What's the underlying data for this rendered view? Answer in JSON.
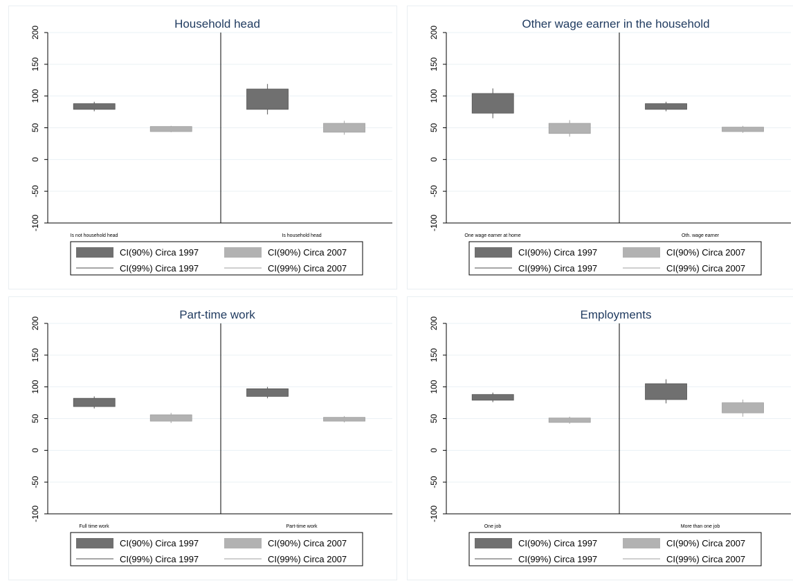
{
  "legend": {
    "ci90_1997": "CI(90%) Circa 1997",
    "ci90_2007": "CI(90%) Circa 2007",
    "ci99_1997": "CI(99%) Circa 1997",
    "ci99_2007": "CI(99%) Circa 2007"
  },
  "colors": {
    "c1997": "#707070",
    "c2007": "#b2b2b2",
    "grid": "#eaf0f4",
    "title": "#1f3a5f"
  },
  "chart_data": [
    {
      "type": "box",
      "title": "Household head",
      "ylim": [
        -100,
        200
      ],
      "yticks": [
        "-100",
        "-50",
        "0",
        "50",
        "100",
        "150",
        "200"
      ],
      "categories": [
        "Is not household head",
        "Is household head"
      ],
      "series": [
        {
          "name": "Circa 1997",
          "ci90": [
            [
              79,
              88
            ],
            [
              79,
              111
            ]
          ],
          "ci99": [
            [
              76,
              91
            ],
            [
              71,
              119
            ]
          ]
        },
        {
          "name": "Circa 2007",
          "ci90": [
            [
              44,
              52
            ],
            [
              43,
              57
            ]
          ],
          "ci99": [
            [
              43,
              53
            ],
            [
              39,
              61
            ]
          ]
        }
      ]
    },
    {
      "type": "box",
      "title": "Other wage earner in the household",
      "ylim": [
        -100,
        200
      ],
      "yticks": [
        "-100",
        "-50",
        "0",
        "50",
        "100",
        "150",
        "200"
      ],
      "categories": [
        "One wage earner at home",
        "Oth. wage earner"
      ],
      "series": [
        {
          "name": "Circa 1997",
          "ci90": [
            [
              73,
              104
            ],
            [
              79,
              88
            ]
          ],
          "ci99": [
            [
              65,
              112
            ],
            [
              76,
              91
            ]
          ]
        },
        {
          "name": "Circa 2007",
          "ci90": [
            [
              41,
              57
            ],
            [
              44,
              51
            ]
          ],
          "ci99": [
            [
              36,
              62
            ],
            [
              42,
              53
            ]
          ]
        }
      ]
    },
    {
      "type": "box",
      "title": "Part-time work",
      "ylim": [
        -100,
        200
      ],
      "yticks": [
        "-100",
        "-50",
        "0",
        "50",
        "100",
        "150",
        "200"
      ],
      "categories": [
        "Full time work",
        "Part-time work"
      ],
      "series": [
        {
          "name": "Circa 1997",
          "ci90": [
            [
              69,
              82
            ],
            [
              85,
              97
            ]
          ],
          "ci99": [
            [
              66,
              85
            ],
            [
              82,
              100
            ]
          ]
        },
        {
          "name": "Circa 2007",
          "ci90": [
            [
              46,
              56
            ],
            [
              46,
              52
            ]
          ],
          "ci99": [
            [
              43,
              59
            ],
            [
              44,
              54
            ]
          ]
        }
      ]
    },
    {
      "type": "box",
      "title": "Employments",
      "ylim": [
        -100,
        200
      ],
      "yticks": [
        "-100",
        "-50",
        "0",
        "50",
        "100",
        "150",
        "200"
      ],
      "categories": [
        "One job",
        "More than one job"
      ],
      "series": [
        {
          "name": "Circa 1997",
          "ci90": [
            [
              79,
              88
            ],
            [
              80,
              105
            ]
          ],
          "ci99": [
            [
              76,
              91
            ],
            [
              74,
              112
            ]
          ]
        },
        {
          "name": "Circa 2007",
          "ci90": [
            [
              44,
              51
            ],
            [
              59,
              75
            ]
          ],
          "ci99": [
            [
              42,
              53
            ],
            [
              53,
              80
            ]
          ]
        }
      ]
    }
  ]
}
